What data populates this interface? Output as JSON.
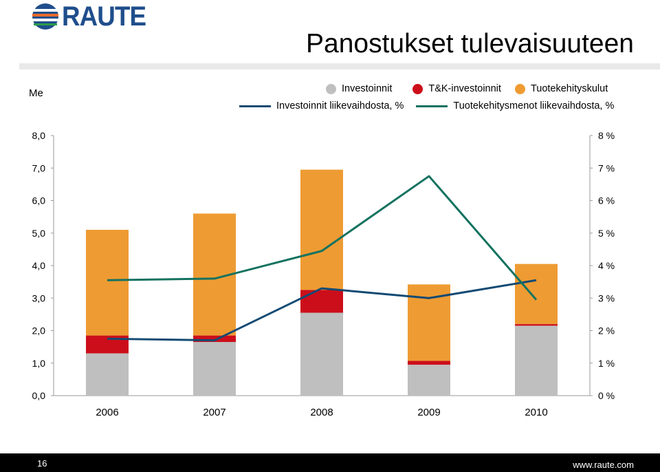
{
  "header": {
    "logo_text": "RAUTE",
    "title": "Panostukset tulevaisuuteen"
  },
  "footer": {
    "page_number": "16",
    "website": "www.raute.com"
  },
  "chart_data": {
    "type": "bar",
    "stacked": true,
    "left_axis_label": "Me",
    "categories": [
      "2006",
      "2007",
      "2008",
      "2009",
      "2010"
    ],
    "y_left_ticks": [
      "0,0",
      "1,0",
      "2,0",
      "3,0",
      "4,0",
      "5,0",
      "6,0",
      "7,0",
      "8,0"
    ],
    "y_right_ticks": [
      "0 %",
      "1 %",
      "2 %",
      "3 %",
      "4 %",
      "5 %",
      "6 %",
      "7 %",
      "8 %"
    ],
    "ylim": [
      0,
      8
    ],
    "y_right_lim": [
      0,
      8
    ],
    "legend": {
      "placement": "top-right",
      "row1": [
        "Investoinnit",
        "T&K-investoinnit",
        "Tuotekehityskulut"
      ],
      "row2": [
        "Investoinnit liikevaihdosta, %",
        "Tuotekehitysmenot liikevaihdosta, %"
      ]
    },
    "series": [
      {
        "name": "Investoinnit",
        "kind": "bar",
        "color": "#bfbfbf",
        "values": [
          1.3,
          1.65,
          2.55,
          0.95,
          2.15
        ]
      },
      {
        "name": "T&K-investoinnit",
        "kind": "bar",
        "color": "#cc0e1b",
        "values": [
          0.55,
          0.2,
          0.7,
          0.12,
          0.05
        ]
      },
      {
        "name": "Tuotekehityskulut",
        "kind": "bar",
        "color": "#ee9b33",
        "values": [
          3.25,
          3.75,
          3.7,
          2.35,
          1.85
        ]
      },
      {
        "name": "Investoinnit liikevaihdosta, %",
        "kind": "line",
        "color": "#124a73",
        "values": [
          1.75,
          1.7,
          3.3,
          3.0,
          3.55
        ]
      },
      {
        "name": "Tuotekehitysmenot liikevaihdosta, %",
        "kind": "line",
        "color": "#137260",
        "values": [
          3.55,
          3.6,
          4.45,
          6.75,
          2.95
        ]
      }
    ]
  }
}
